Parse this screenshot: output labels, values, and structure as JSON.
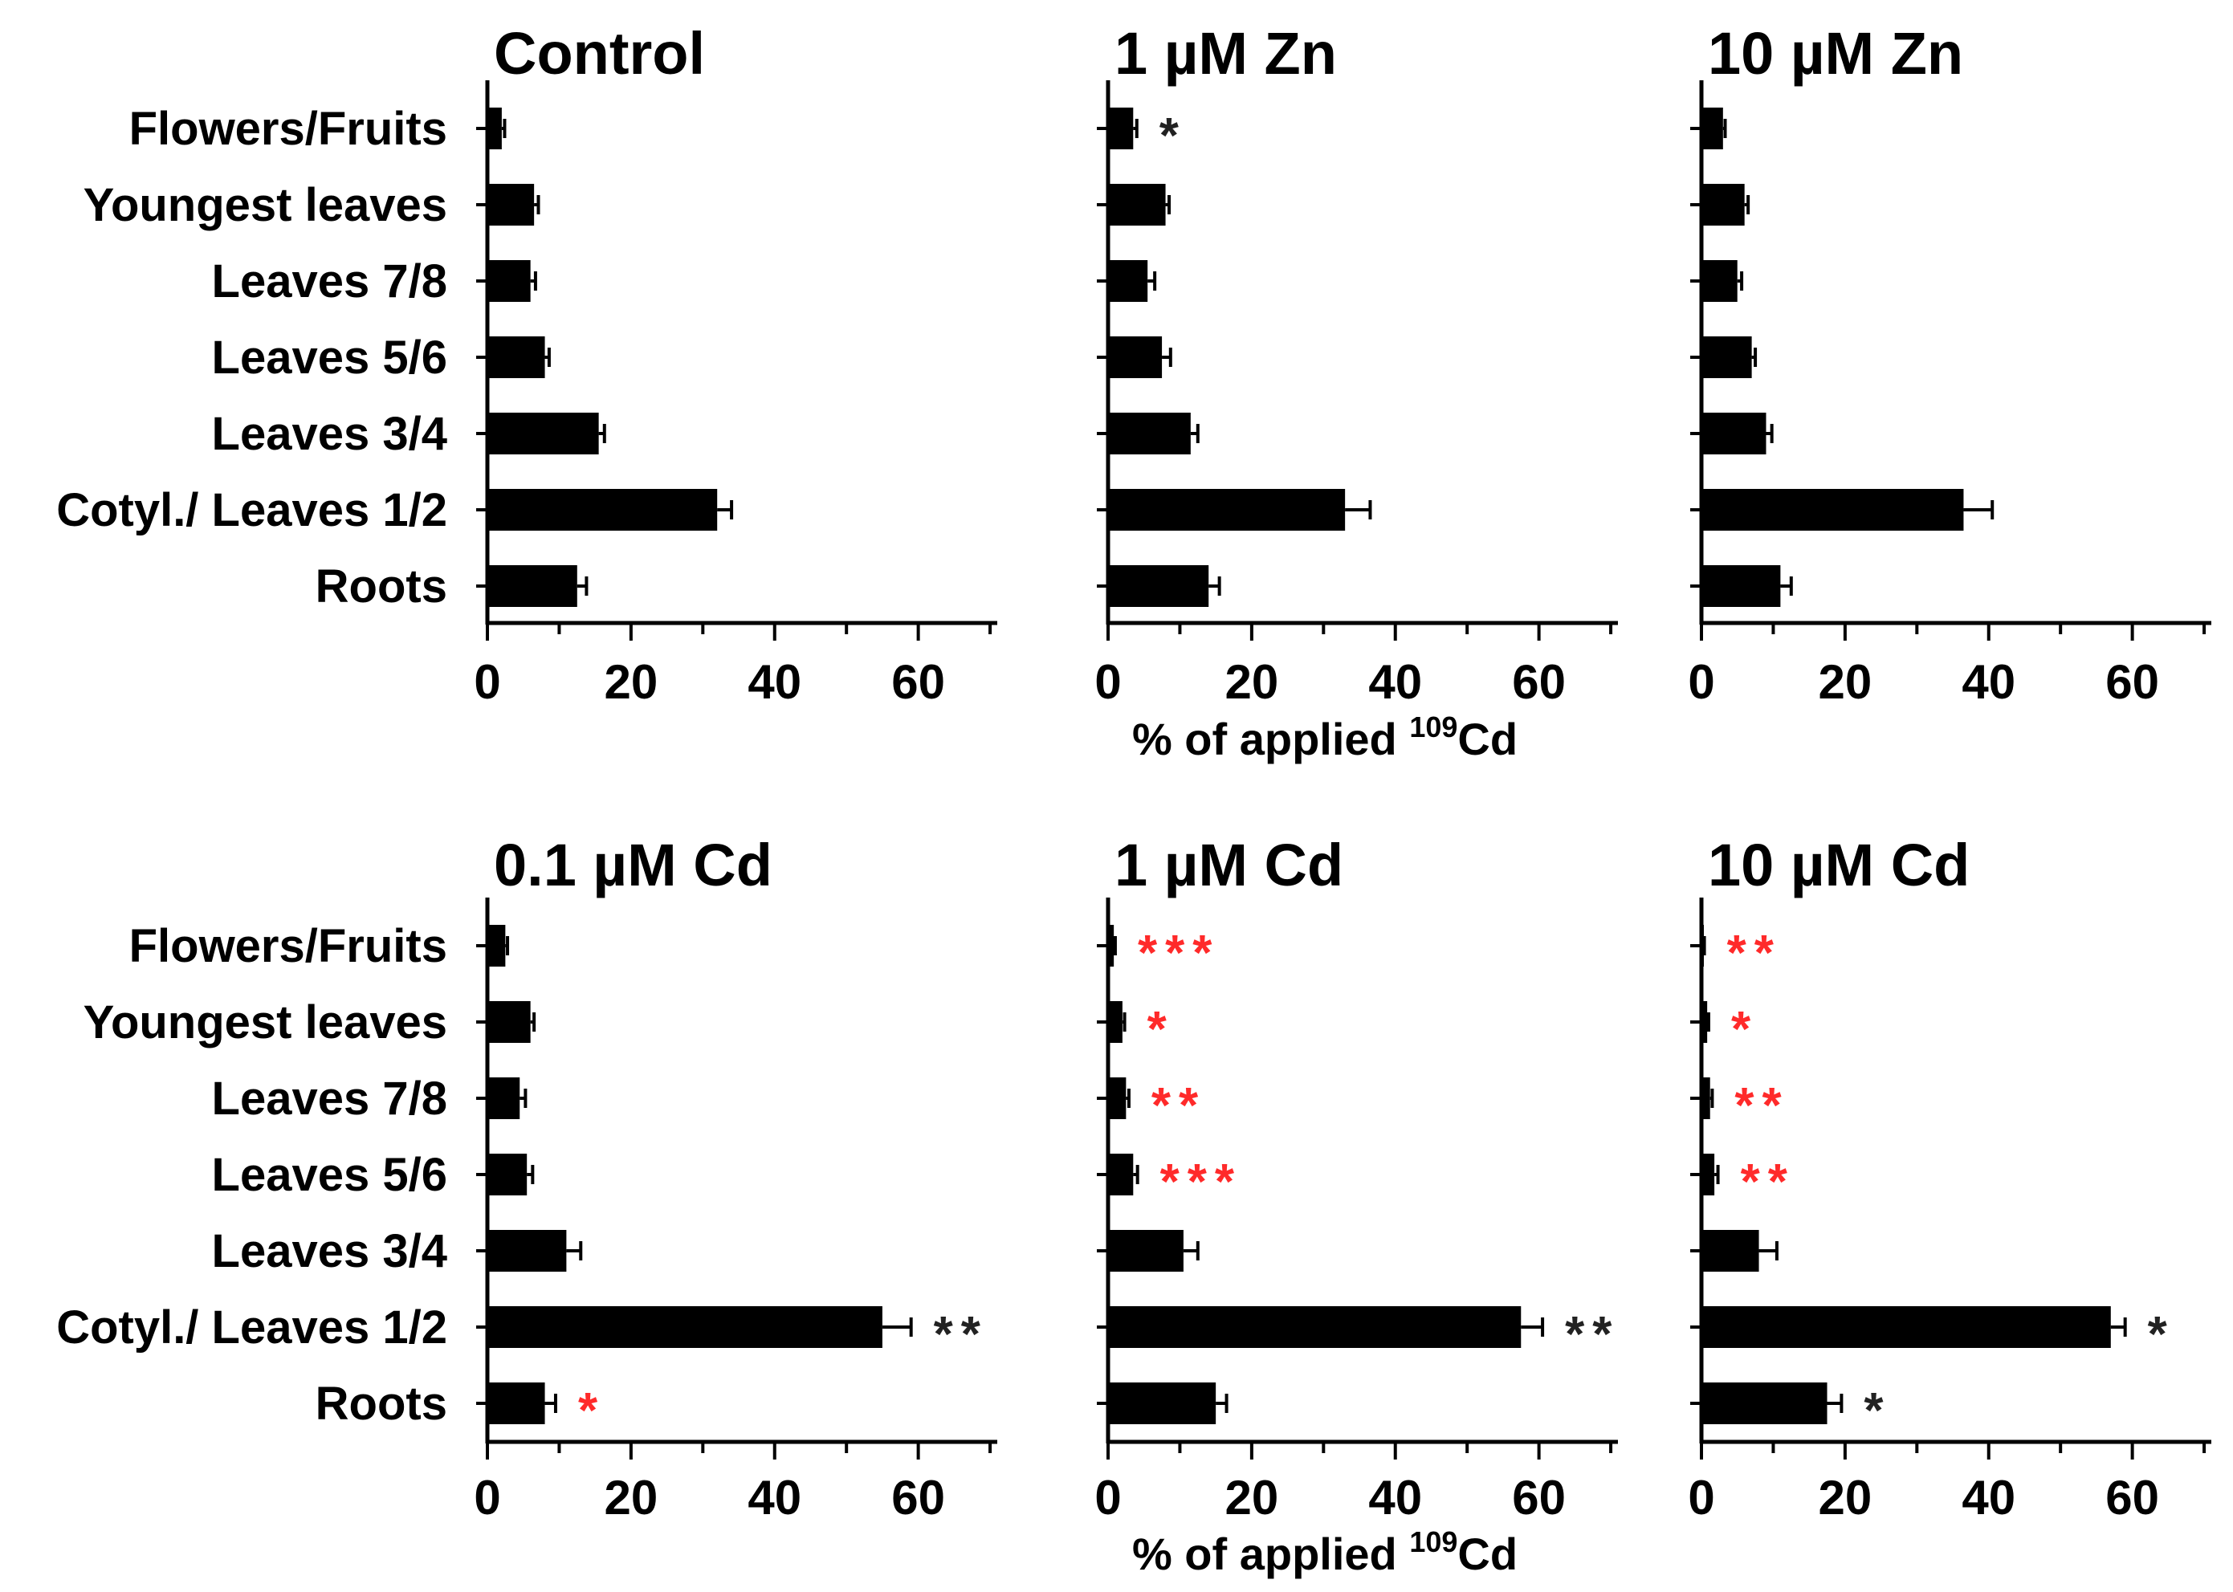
{
  "figure": {
    "categories": [
      "Flowers/Fruits",
      "Youngest leaves",
      "Leaves 7/8",
      "Leaves 5/6",
      "Leaves 3/4",
      "Cotyl./ Leaves 1/2",
      "Roots"
    ],
    "x_ticks": [
      0,
      20,
      40,
      60
    ],
    "xlim": [
      0,
      71
    ],
    "x_axis_label_prefix": "% of applied ",
    "x_axis_label_superscript": "109",
    "x_axis_label_suffix": "Cd",
    "colors": {
      "bar": "#000000",
      "significance_vs_control_black": "#222222",
      "significance_red": "#ff2a2a"
    }
  },
  "chart_data": [
    {
      "type": "bar",
      "orientation": "horizontal",
      "title": "Control",
      "categories": [
        "Flowers/Fruits",
        "Youngest leaves",
        "Leaves 7/8",
        "Leaves 5/6",
        "Leaves 3/4",
        "Cotyl./ Leaves 1/2",
        "Roots"
      ],
      "values": [
        2,
        6.5,
        6,
        8,
        15.5,
        32,
        12.5
      ],
      "errors": [
        0.4,
        0.6,
        0.7,
        0.6,
        0.8,
        2,
        1.3
      ],
      "significance": [
        null,
        null,
        null,
        null,
        null,
        null,
        null
      ],
      "xlim": [
        0,
        71
      ],
      "x_ticks": [
        0,
        20,
        40,
        60
      ],
      "show_category_labels": true,
      "show_xlabel": false
    },
    {
      "type": "bar",
      "orientation": "horizontal",
      "title": "1 µM Zn",
      "categories": [
        "Flowers/Fruits",
        "Youngest leaves",
        "Leaves 7/8",
        "Leaves 5/6",
        "Leaves 3/4",
        "Cotyl./ Leaves 1/2",
        "Roots"
      ],
      "values": [
        3.5,
        8,
        5.5,
        7.5,
        11.5,
        33,
        14
      ],
      "errors": [
        0.5,
        0.5,
        1,
        1.2,
        1,
        3.5,
        1.5
      ],
      "significance": [
        {
          "text": "*",
          "color": "black"
        },
        null,
        null,
        null,
        null,
        null,
        null
      ],
      "xlim": [
        0,
        71
      ],
      "x_ticks": [
        0,
        20,
        40,
        60
      ],
      "show_category_labels": false,
      "show_xlabel": true
    },
    {
      "type": "bar",
      "orientation": "horizontal",
      "title": "10 µM Zn",
      "categories": [
        "Flowers/Fruits",
        "Youngest leaves",
        "Leaves 7/8",
        "Leaves 5/6",
        "Leaves 3/4",
        "Cotyl./ Leaves 1/2",
        "Roots"
      ],
      "values": [
        3,
        6,
        5,
        7,
        9,
        36.5,
        11
      ],
      "errors": [
        0.3,
        0.5,
        0.6,
        0.5,
        0.8,
        4,
        1.5
      ],
      "significance": [
        null,
        null,
        null,
        null,
        null,
        null,
        null
      ],
      "xlim": [
        0,
        71
      ],
      "x_ticks": [
        0,
        20,
        40,
        60
      ],
      "show_category_labels": false,
      "show_xlabel": false
    },
    {
      "type": "bar",
      "orientation": "horizontal",
      "title": "0.1 µM Cd",
      "categories": [
        "Flowers/Fruits",
        "Youngest leaves",
        "Leaves 7/8",
        "Leaves 5/6",
        "Leaves 3/4",
        "Cotyl./ Leaves 1/2",
        "Roots"
      ],
      "values": [
        2.5,
        6,
        4.5,
        5.5,
        11,
        55,
        8
      ],
      "errors": [
        0.3,
        0.5,
        0.8,
        0.8,
        2,
        4,
        1.5
      ],
      "significance": [
        null,
        null,
        null,
        null,
        null,
        {
          "text": "**",
          "color": "black"
        },
        {
          "text": "*",
          "color": "red"
        }
      ],
      "xlim": [
        0,
        71
      ],
      "x_ticks": [
        0,
        20,
        40,
        60
      ],
      "show_category_labels": true,
      "show_xlabel": false
    },
    {
      "type": "bar",
      "orientation": "horizontal",
      "title": "1 µM Cd",
      "categories": [
        "Flowers/Fruits",
        "Youngest leaves",
        "Leaves 7/8",
        "Leaves 5/6",
        "Leaves 3/4",
        "Cotyl./ Leaves 1/2",
        "Roots"
      ],
      "values": [
        0.8,
        2,
        2.5,
        3.5,
        10.5,
        57.5,
        15
      ],
      "errors": [
        0.2,
        0.3,
        0.4,
        0.6,
        2,
        3,
        1.5
      ],
      "significance": [
        {
          "text": "***",
          "color": "red"
        },
        {
          "text": "*",
          "color": "red"
        },
        {
          "text": "**",
          "color": "red"
        },
        {
          "text": "***",
          "color": "red"
        },
        null,
        {
          "text": "**",
          "color": "black"
        },
        null
      ],
      "xlim": [
        0,
        71
      ],
      "x_ticks": [
        0,
        20,
        40,
        60
      ],
      "show_category_labels": false,
      "show_xlabel": true
    },
    {
      "type": "bar",
      "orientation": "horizontal",
      "title": "10 µM Cd",
      "categories": [
        "Flowers/Fruits",
        "Youngest leaves",
        "Leaves 7/8",
        "Leaves 5/6",
        "Leaves 3/4",
        "Cotyl./ Leaves 1/2",
        "Roots"
      ],
      "values": [
        0.3,
        0.8,
        1.2,
        1.8,
        8,
        57,
        17.5
      ],
      "errors": [
        0.1,
        0.2,
        0.3,
        0.5,
        2.5,
        2,
        2
      ],
      "significance": [
        {
          "text": "**",
          "color": "red"
        },
        {
          "text": "*",
          "color": "red"
        },
        {
          "text": "**",
          "color": "red"
        },
        {
          "text": "**",
          "color": "red"
        },
        null,
        {
          "text": "*",
          "color": "black"
        },
        {
          "text": "*",
          "color": "black"
        }
      ],
      "xlim": [
        0,
        71
      ],
      "x_ticks": [
        0,
        20,
        40,
        60
      ],
      "show_category_labels": false,
      "show_xlabel": false
    }
  ]
}
